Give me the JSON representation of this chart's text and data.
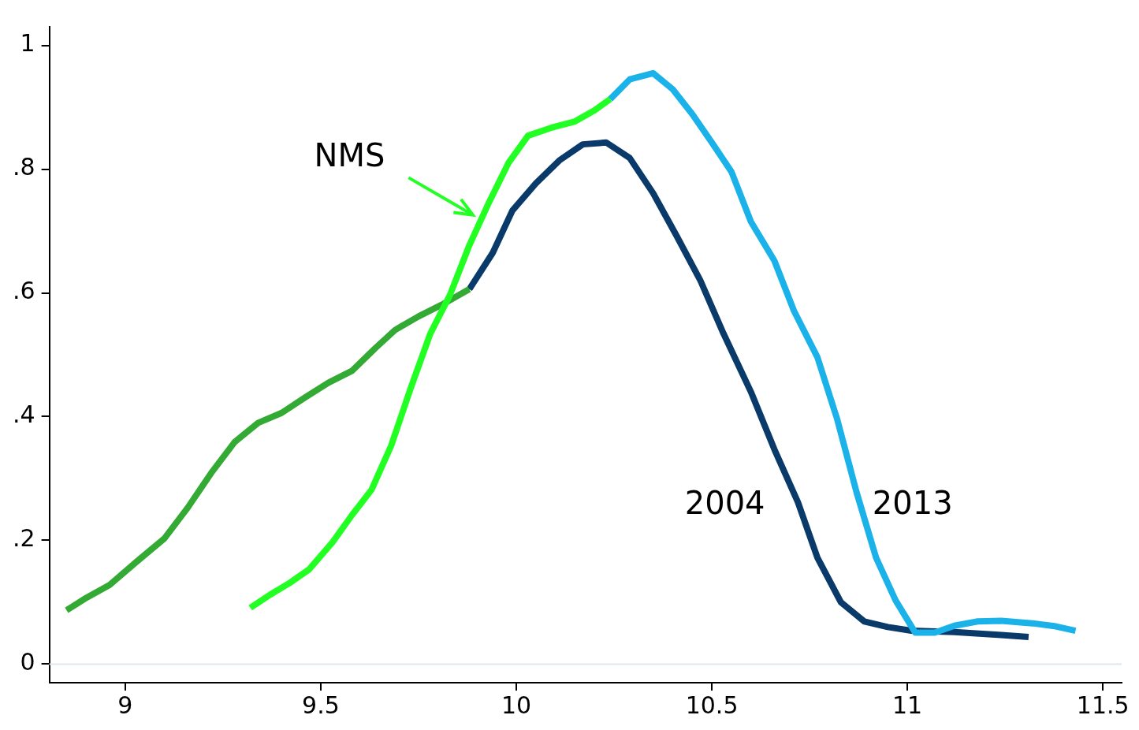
{
  "chart_data": {
    "type": "line",
    "xlim": [
      8.806,
      11.548
    ],
    "xticks": [
      9,
      9.5,
      10,
      10.5,
      11,
      11.5
    ],
    "ylim": [
      -0.03,
      1.03
    ],
    "yticks": [
      {
        "value": 0,
        "label": "0"
      },
      {
        "value": 0.2,
        "label": ".2"
      },
      {
        "value": 0.4,
        "label": ".4"
      },
      {
        "value": 0.6,
        "label": ".6"
      },
      {
        "value": 0.8,
        "label": ".8"
      },
      {
        "value": 1,
        "label": "1"
      }
    ],
    "grid": false,
    "legend": false,
    "marker": "none",
    "line_style": "solid",
    "ref_lines": [
      {
        "axis": "y",
        "value": 0,
        "color": "#dde8ee"
      }
    ],
    "annotations": [
      "NMS",
      "2004",
      "2013"
    ],
    "series": [
      {
        "color": "#0a3a6a",
        "x": [
          9.88,
          9.94,
          9.99,
          10.05,
          10.11,
          10.17,
          10.23,
          10.29,
          10.35,
          10.41,
          10.47,
          10.53,
          10.6,
          10.66,
          10.72,
          10.77,
          10.83,
          10.89,
          10.95,
          11.01,
          11.12,
          11.24,
          11.31
        ],
        "values": [
          0.606,
          0.665,
          0.733,
          0.777,
          0.814,
          0.84,
          0.843,
          0.818,
          0.761,
          0.692,
          0.621,
          0.534,
          0.44,
          0.347,
          0.262,
          0.172,
          0.1,
          0.069,
          0.06,
          0.054,
          0.052,
          0.047,
          0.044
        ]
      },
      {
        "color": "#1ab2e8",
        "x": [
          10.24,
          10.29,
          10.35,
          10.4,
          10.45,
          10.5,
          10.55,
          10.6,
          10.66,
          10.71,
          10.77,
          10.82,
          10.87,
          10.92,
          10.97,
          11.02,
          11.07,
          11.12,
          11.18,
          11.24,
          11.32,
          11.38,
          11.43
        ],
        "values": [
          0.913,
          0.945,
          0.955,
          0.929,
          0.889,
          0.843,
          0.796,
          0.715,
          0.652,
          0.571,
          0.496,
          0.397,
          0.278,
          0.172,
          0.103,
          0.051,
          0.051,
          0.062,
          0.069,
          0.07,
          0.066,
          0.061,
          0.054
        ]
      },
      {
        "color": "#33aa33",
        "x": [
          8.85,
          8.9,
          8.96,
          9.03,
          9.1,
          9.16,
          9.22,
          9.28,
          9.34,
          9.4,
          9.46,
          9.52,
          9.58,
          9.64,
          9.69,
          9.75,
          9.81,
          9.88
        ],
        "values": [
          0.087,
          0.107,
          0.128,
          0.166,
          0.203,
          0.253,
          0.309,
          0.359,
          0.39,
          0.406,
          0.431,
          0.455,
          0.474,
          0.511,
          0.54,
          0.562,
          0.581,
          0.606
        ]
      },
      {
        "color": "#22ff22",
        "x": [
          9.32,
          9.37,
          9.42,
          9.47,
          9.53,
          9.58,
          9.63,
          9.68,
          9.73,
          9.78,
          9.83,
          9.88,
          9.93,
          9.98,
          10.03,
          10.09,
          10.15,
          10.2,
          10.24
        ],
        "values": [
          0.091,
          0.112,
          0.131,
          0.153,
          0.197,
          0.241,
          0.282,
          0.353,
          0.446,
          0.534,
          0.596,
          0.677,
          0.746,
          0.81,
          0.854,
          0.867,
          0.877,
          0.895,
          0.913
        ]
      }
    ]
  }
}
